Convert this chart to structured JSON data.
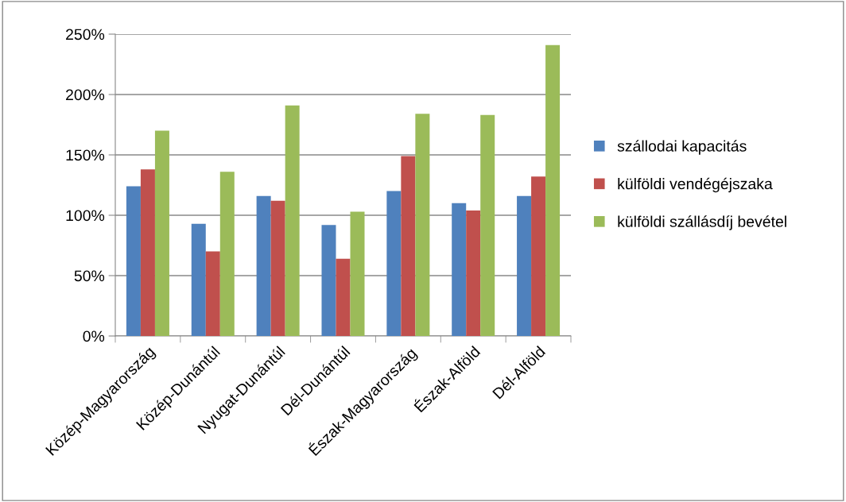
{
  "chart_data": {
    "type": "bar",
    "categories": [
      "Közép-Magyarország",
      "Közép-Dunántúl",
      "Nyugat-Dunántúl",
      "Dél-Dunántúl",
      "Észak-Magyarország",
      "Észak-Alföld",
      "Dél-Alföld"
    ],
    "series": [
      {
        "name": "szállodai kapacitás",
        "color": "#4f81bd",
        "values": [
          124,
          93,
          116,
          92,
          120,
          110,
          116
        ]
      },
      {
        "name": "külföldi vendégéjszaka",
        "color": "#c0504d",
        "values": [
          138,
          70,
          112,
          64,
          149,
          104,
          132
        ]
      },
      {
        "name": "külföldi szállásdíj bevétel",
        "color": "#9bbb59",
        "values": [
          170,
          136,
          191,
          103,
          184,
          183,
          241
        ]
      }
    ],
    "ylim": [
      0,
      250
    ],
    "yticks": [
      {
        "value": 0,
        "label": "0%"
      },
      {
        "value": 50,
        "label": "50%"
      },
      {
        "value": 100,
        "label": "100%"
      },
      {
        "value": 150,
        "label": "150%"
      },
      {
        "value": 200,
        "label": "200%"
      },
      {
        "value": 250,
        "label": "250%"
      }
    ],
    "grid": "y",
    "legend": "right"
  }
}
